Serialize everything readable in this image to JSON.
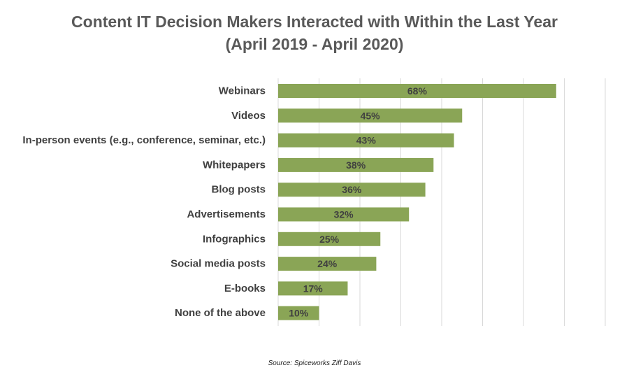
{
  "title_line1": "Content IT Decision Makers Interacted with Within the Last Year",
  "title_line2": "(April 2019 -  April 2020)",
  "source": "Source: Spiceworks Ziff Davis",
  "colors": {
    "bar": "#8aa556",
    "gridline": "#d9d9d9",
    "category_label": "#404040",
    "data_label": "#404040"
  },
  "chart_data": {
    "type": "bar",
    "orientation": "horizontal",
    "categories": [
      "Webinars",
      "Videos",
      "In-person events (e.g., conference, seminar, etc.)",
      "Whitepapers",
      "Blog posts",
      "Advertisements",
      "Infographics",
      "Social media posts",
      "E-books",
      "None of the above"
    ],
    "values": [
      68,
      45,
      43,
      38,
      36,
      32,
      25,
      24,
      17,
      10
    ],
    "data_labels": [
      "68%",
      "45%",
      "43%",
      "38%",
      "36%",
      "32%",
      "25%",
      "24%",
      "17%",
      "10%"
    ],
    "xlim": [
      0,
      80
    ],
    "grid": true,
    "legend": "none"
  }
}
